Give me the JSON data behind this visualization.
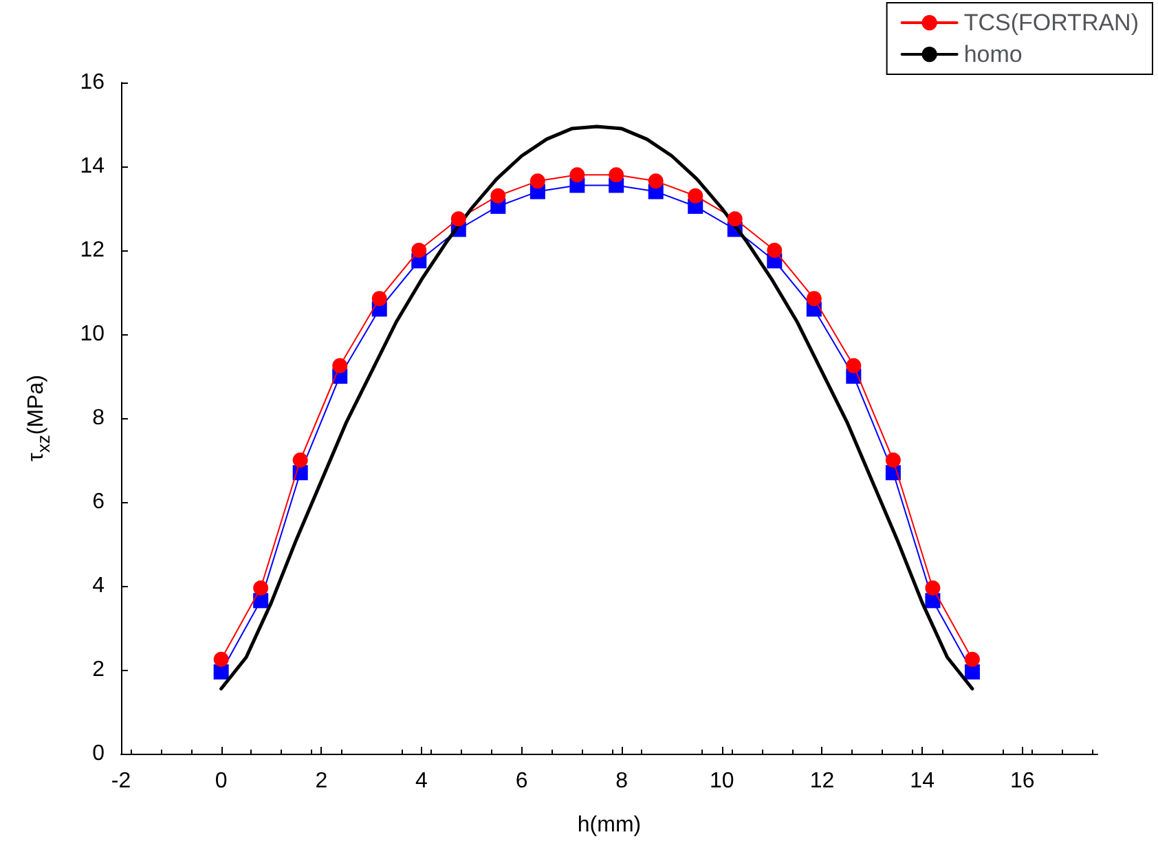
{
  "chart_data": {
    "type": "line",
    "xlabel": "h(mm)",
    "ylabel": "τ$_{xz}$(MPa)",
    "x": [
      0,
      0.79,
      1.58,
      2.37,
      3.16,
      3.95,
      4.74,
      5.53,
      6.32,
      7.11,
      7.89,
      8.68,
      9.47,
      10.26,
      11.05,
      11.84,
      12.63,
      13.42,
      14.21,
      15
    ],
    "series": [
      {
        "color": "#0000ff",
        "marker": "square",
        "values": [
          1.95,
          3.65,
          6.7,
          9.0,
          10.6,
          11.75,
          12.5,
          13.05,
          13.4,
          13.55,
          13.55,
          13.4,
          13.05,
          12.5,
          11.75,
          10.6,
          9.0,
          6.7,
          3.65,
          1.95
        ]
      },
      {
        "name": "TCS(FORTRAN)",
        "color": "#ff0000",
        "marker": "circle",
        "values": [
          2.25,
          3.95,
          7.0,
          9.25,
          10.85,
          12.0,
          12.75,
          13.3,
          13.65,
          13.8,
          13.8,
          13.65,
          13.3,
          12.75,
          12.0,
          10.85,
          9.25,
          7.0,
          3.95,
          2.25
        ]
      },
      {
        "name": "homo",
        "color": "#000000",
        "marker": "none",
        "x": [
          0,
          0.5,
          1,
          1.5,
          2,
          2.5,
          3,
          3.5,
          4,
          4.5,
          5,
          5.5,
          6,
          6.5,
          7,
          7.5,
          8,
          8.5,
          9,
          9.5,
          10,
          10.5,
          11,
          11.5,
          12,
          12.5,
          13,
          13.5,
          14,
          14.5,
          15
        ],
        "values": [
          1.55,
          2.3,
          3.6,
          5.1,
          6.5,
          7.9,
          9.1,
          10.3,
          11.3,
          12.2,
          13.0,
          13.7,
          14.25,
          14.65,
          14.9,
          14.95,
          14.9,
          14.65,
          14.25,
          13.7,
          13.0,
          12.2,
          11.3,
          10.3,
          9.1,
          7.9,
          6.5,
          5.1,
          3.6,
          2.3,
          1.55
        ]
      }
    ],
    "xlim": [
      -2,
      17.5
    ],
    "xticks": [
      -2,
      0,
      2,
      4,
      6,
      8,
      10,
      12,
      14,
      16
    ],
    "ylim": [
      0,
      16
    ],
    "yticks": [
      0,
      2,
      4,
      6,
      8,
      10,
      12,
      14,
      16
    ],
    "grid": false,
    "legend": "top right"
  }
}
